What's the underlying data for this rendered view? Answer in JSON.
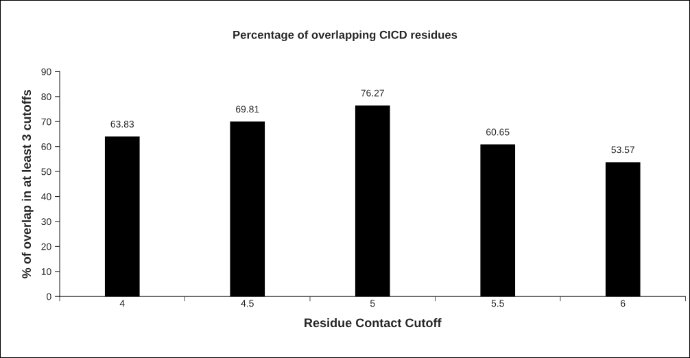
{
  "chart_data": {
    "type": "bar",
    "title": "Percentage of overlapping CICD residues",
    "xlabel": "Residue Contact Cutoff",
    "ylabel": "% of overlap in at least 3 cutoffs",
    "categories": [
      "4",
      "4.5",
      "5",
      "5.5",
      "6"
    ],
    "values": [
      63.83,
      69.81,
      76.27,
      60.65,
      53.57
    ],
    "color": "#000000",
    "ylim": [
      0,
      90
    ],
    "yticks": [
      0,
      10,
      20,
      30,
      40,
      50,
      60,
      70,
      80,
      90
    ],
    "grid": false,
    "legend": false,
    "data_labels": true
  }
}
